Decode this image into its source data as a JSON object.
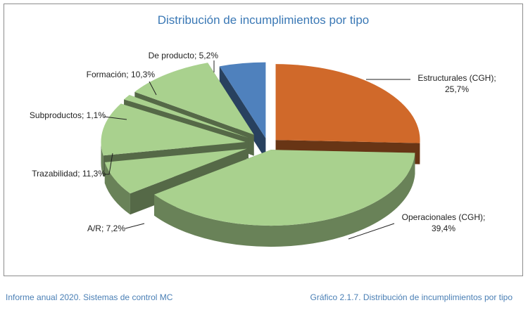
{
  "chart_data": {
    "type": "pie3d",
    "title": "Distribución de incumplimientos por tipo",
    "categories": [
      "Estructurales (CGH)",
      "Operacionales (CGH)",
      "A/R",
      "Trazabilidad",
      "Subproductos",
      "Formación",
      "De producto"
    ],
    "values": [
      25.7,
      39.4,
      7.2,
      11.3,
      1.1,
      10.3,
      5.2
    ],
    "value_labels": [
      "Estructurales (CGH); 25,7%",
      "Operacionales (CGH); 39,4%",
      "A/R; 7,2%",
      "Trazabilidad; 11,3%",
      "Subproductos; 1,1%",
      "Formación; 10,3%",
      "De producto; 5,2%"
    ],
    "colors": [
      "#d0692a",
      "#a9d18e",
      "#a9d18e",
      "#a9d18e",
      "#a9d18e",
      "#a9d18e",
      "#4f81bd"
    ]
  },
  "footer": {
    "left": "Informe anual 2020. Sistemas de control MC",
    "right": "Gráfico 2.1.7. Distribución de incumplimientos por tipo"
  }
}
